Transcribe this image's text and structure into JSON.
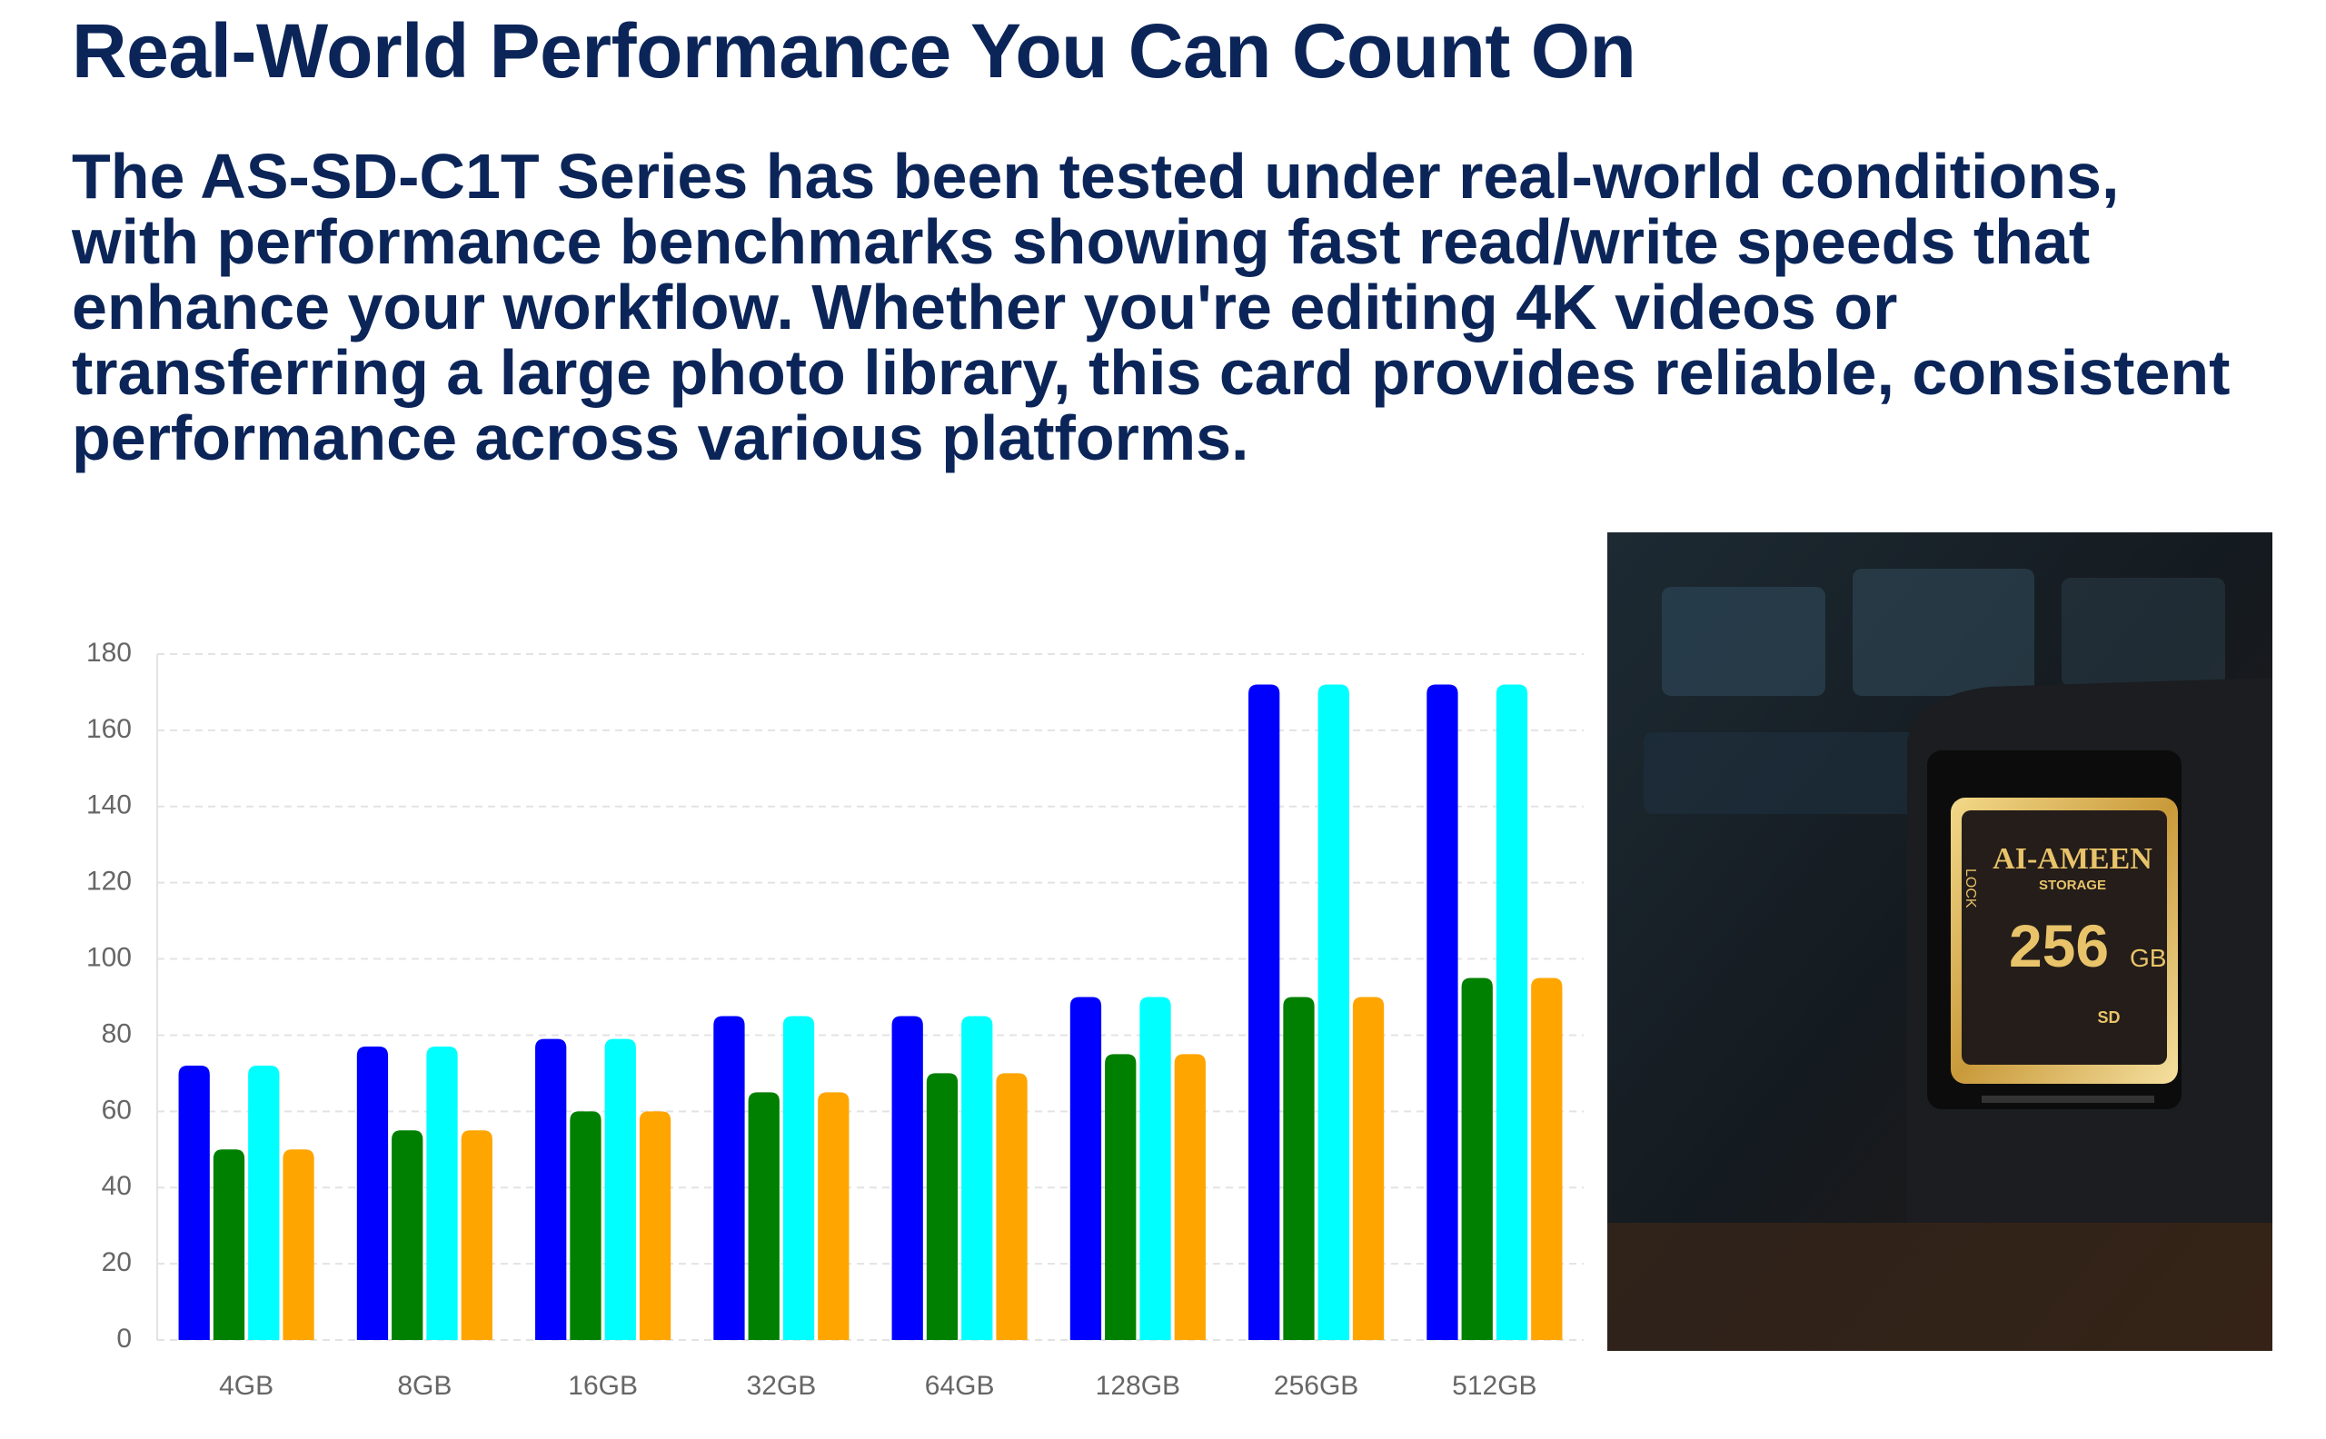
{
  "header": {
    "title": "Real-World Performance You Can Count On",
    "description": "The AS-SD-C1T Series has been tested under real-world conditions, with performance benchmarks showing fast read/write speeds that enhance your workflow. Whether you're editing 4K videos or transferring a large photo library, this card provides reliable, consistent performance across various platforms."
  },
  "chart_data": {
    "type": "bar",
    "categories": [
      "4GB",
      "8GB",
      "16GB",
      "32GB",
      "64GB",
      "128GB",
      "256GB",
      "512GB"
    ],
    "series": [
      {
        "color": "#0000ff",
        "values": [
          72,
          77,
          79,
          85,
          85,
          90,
          172,
          172
        ]
      },
      {
        "color": "#008000",
        "values": [
          50,
          55,
          60,
          65,
          70,
          75,
          90,
          95
        ]
      },
      {
        "color": "#00ffff",
        "values": [
          72,
          77,
          79,
          85,
          85,
          90,
          172,
          172
        ]
      },
      {
        "color": "#ffa500",
        "values": [
          50,
          55,
          60,
          65,
          70,
          75,
          90,
          95
        ]
      }
    ],
    "ylim": [
      0,
      180
    ],
    "yticks": [
      0,
      20,
      40,
      60,
      80,
      100,
      120,
      140,
      160,
      180
    ],
    "grid": true
  },
  "photo": {
    "lock": "LOCK",
    "brand": "AI-AMEEN",
    "subbrand": "STORAGE",
    "capacity": "256",
    "unit": "GB",
    "format": "SD"
  }
}
